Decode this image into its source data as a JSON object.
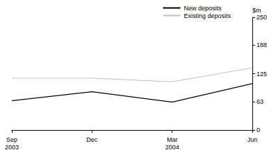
{
  "chart_data": {
    "type": "line",
    "categories": [
      "Sep\n2003",
      "Dec",
      "Mar\n2004",
      "Jun"
    ],
    "series": [
      {
        "name": "New deposits",
        "color": "#000000",
        "values": [
          65,
          85,
          62,
          103
        ]
      },
      {
        "name": "Existing deposits",
        "color": "#c0c0c0",
        "values": [
          115,
          115,
          107,
          138
        ]
      }
    ],
    "y_label": "$m",
    "ylim": [
      0,
      250
    ],
    "yticks": [
      0,
      63,
      125,
      188,
      250
    ],
    "grid": false,
    "legend": "top-right"
  }
}
